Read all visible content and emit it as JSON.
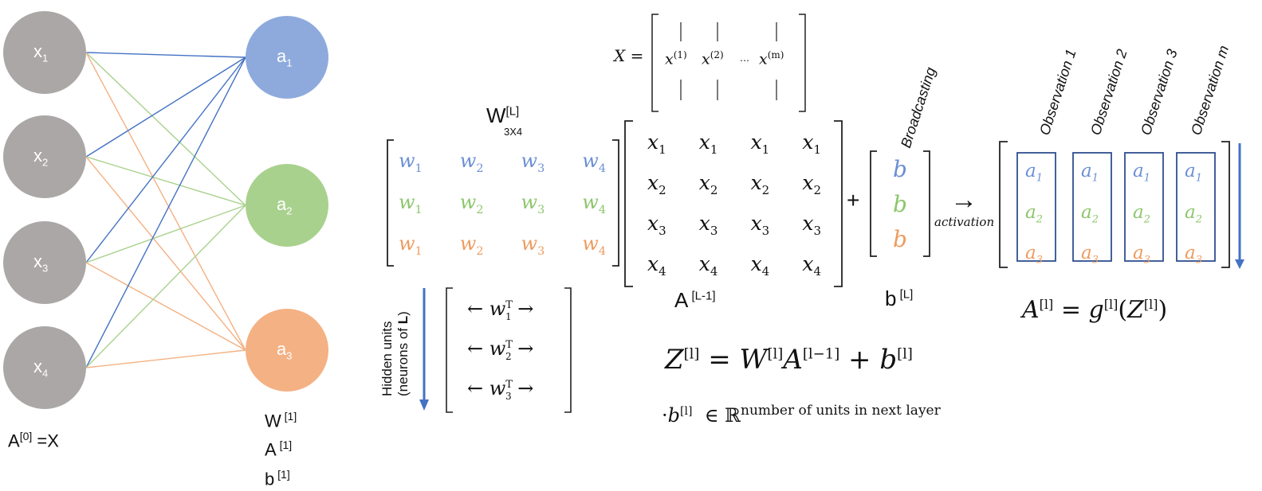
{
  "colors": {
    "gray": "#aaa7a6",
    "blue": "#8eaadc",
    "green": "#a9d18e",
    "orange": "#f4b183",
    "line_blue": "#4472c4",
    "line_green": "#a9d18e",
    "line_orange": "#f4b183"
  },
  "inputs": [
    {
      "label": "x",
      "sub": "1"
    },
    {
      "label": "x",
      "sub": "2"
    },
    {
      "label": "x",
      "sub": "3"
    },
    {
      "label": "x",
      "sub": "4"
    }
  ],
  "outputs": [
    {
      "label": "a",
      "sub": "1"
    },
    {
      "label": "a",
      "sub": "2"
    },
    {
      "label": "a",
      "sub": "3"
    }
  ],
  "left_caption": {
    "main": "A",
    "sup": "[0]",
    "tail": " =X"
  },
  "layer_caption": [
    {
      "main": "W",
      "sup": " [1]"
    },
    {
      "main": "A",
      "sup": " [1]"
    },
    {
      "main": "b",
      "sup": " [1]"
    }
  ],
  "X_def": {
    "lhs": "X =",
    "cols": [
      "x",
      "x",
      "x"
    ],
    "sups": [
      "(1)",
      "(2)",
      "(m)"
    ],
    "dots": "…"
  },
  "W_label": {
    "main": "W",
    "sup": "[L]",
    "sub": "3X4"
  },
  "W_matrix": {
    "rows": [
      {
        "color": "blue",
        "cells": [
          [
            "w",
            "1"
          ],
          [
            "w",
            "2"
          ],
          [
            "w",
            "3"
          ],
          [
            "w",
            "4"
          ]
        ]
      },
      {
        "color": "green",
        "cells": [
          [
            "w",
            "1"
          ],
          [
            "w",
            "2"
          ],
          [
            "w",
            "3"
          ],
          [
            "w",
            "4"
          ]
        ]
      },
      {
        "color": "orange",
        "cells": [
          [
            "w",
            "1"
          ],
          [
            "w",
            "2"
          ],
          [
            "w",
            "3"
          ],
          [
            "w",
            "4"
          ]
        ]
      }
    ]
  },
  "A_matrix": {
    "rows": [
      [
        [
          "x",
          "1"
        ],
        [
          "x",
          "1"
        ],
        [
          "x",
          "1"
        ],
        [
          "x",
          "1"
        ]
      ],
      [
        [
          "x",
          "2"
        ],
        [
          "x",
          "2"
        ],
        [
          "x",
          "2"
        ],
        [
          "x",
          "2"
        ]
      ],
      [
        [
          "x",
          "3"
        ],
        [
          "x",
          "3"
        ],
        [
          "x",
          "3"
        ],
        [
          "x",
          "3"
        ]
      ],
      [
        [
          "x",
          "4"
        ],
        [
          "x",
          "4"
        ],
        [
          "x",
          "4"
        ],
        [
          "x",
          "4"
        ]
      ]
    ]
  },
  "A_label": {
    "main": "A",
    "sup": " [L-1]"
  },
  "plus": "+",
  "b_vector": [
    "b",
    "b",
    "b"
  ],
  "b_label": {
    "main": "b",
    "sup": " [L]"
  },
  "broadcasting": "Broadcasting",
  "arrow": "→",
  "activation": "activation",
  "observations": [
    "Observation 1",
    "Observation 2",
    "Observation 3",
    "Observation m"
  ],
  "out_cells": [
    [
      "a",
      "1"
    ],
    [
      "a",
      "2"
    ],
    [
      "a",
      "3"
    ]
  ],
  "hidden_units": {
    "line1": "Hidden units",
    "line2_pre": "(neurons of ",
    "line2_bold": "L",
    "line2_post": ")"
  },
  "wT_rows": [
    {
      "left": "←",
      "w": "w",
      "sub": "1",
      "sup": "T",
      "right": "→"
    },
    {
      "left": "←",
      "w": "w",
      "sub": "2",
      "sup": "T",
      "right": "→"
    },
    {
      "left": "←",
      "w": "w",
      "sub": "3",
      "sup": "T",
      "right": "→"
    }
  ],
  "eq_Z": {
    "Z": "Z",
    "l": "[l]",
    "eq": " = ",
    "W": "W",
    "A": "A",
    "lm1": "[l−1]",
    "plus": " + ",
    "b": "b"
  },
  "eq_b": {
    "dot": "·",
    "b": "b",
    "l": "[l]",
    "in": "∈ ℝ",
    "sup": "number of units in next layer"
  },
  "eq_A": {
    "A": "A",
    "l": "[l]",
    "eq": " = ",
    "g": "g",
    "open": "(",
    "Z": "Z",
    "close": ")"
  }
}
